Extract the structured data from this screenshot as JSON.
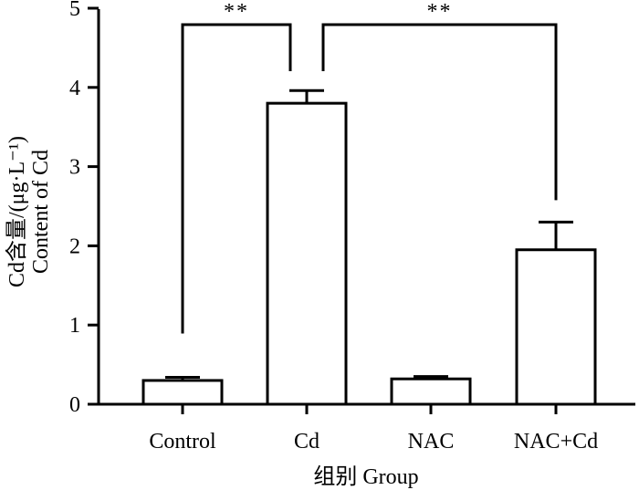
{
  "chart_data": {
    "type": "bar",
    "categories": [
      "Control",
      "Cd",
      "NAC",
      "NAC+Cd"
    ],
    "values": [
      0.3,
      3.8,
      0.32,
      1.95
    ],
    "errors": [
      0.04,
      0.16,
      0.03,
      0.35
    ],
    "ylim": [
      0,
      5
    ],
    "yticks": [
      "0",
      "1",
      "2",
      "3",
      "4",
      "5"
    ],
    "xlabel": "组别  Group",
    "ylabel_line1": "Cd含量/(μg·L⁻¹)",
    "ylabel_line2": "Content of Cd",
    "significance": [
      {
        "from": 0,
        "to": 1,
        "label": "**"
      },
      {
        "from": 3,
        "to": 1,
        "label": "**"
      }
    ]
  }
}
